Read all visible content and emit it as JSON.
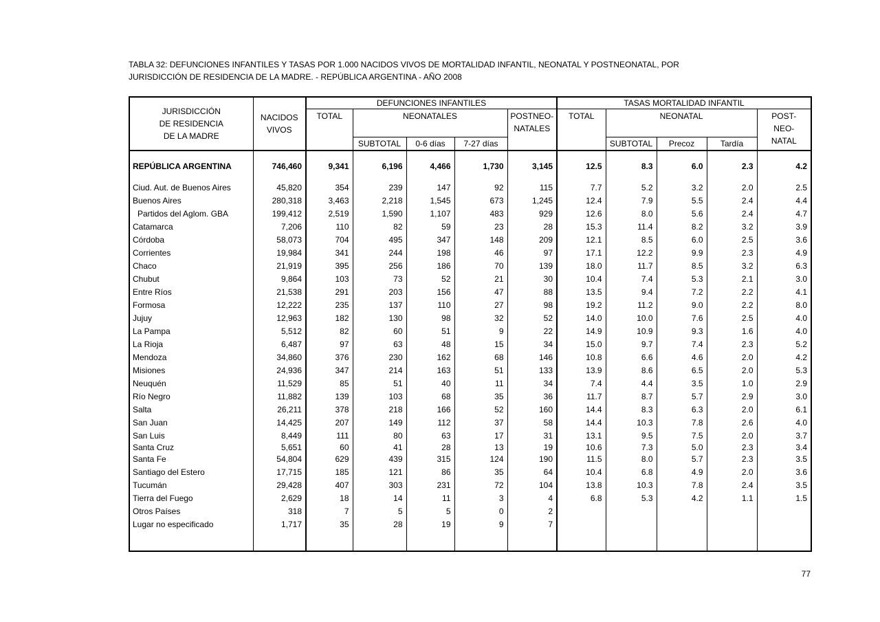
{
  "title": {
    "line1": "TABLA 32: DEFUNCIONES INFANTILES Y TASAS POR 1.000 NACIDOS VIVOS DE MORTALIDAD INFANTIL, NEONATAL Y POSTNEONATAL, POR",
    "line2": "JURISDICCIÓN DE RESIDENCIA DE LA MADRE. - REPÚBLICA ARGENTINA - AÑO 2008"
  },
  "page": {
    "number": "77"
  },
  "table": {
    "header": {
      "jurisdiction_lines": [
        "JURISDICCIÓN",
        "DE RESIDENCIA",
        "DE LA MADRE"
      ],
      "nacidos_lines": [
        "NACIDOS",
        "VIVOS"
      ],
      "defunciones_group": "DEFUNCIONES  INFANTILES",
      "tasas_group": "TASAS MORTALIDAD INFANTIL",
      "defunciones_total": "TOTAL",
      "neonatales": "NEONATALES",
      "postneonatales_lines": [
        "POSTNEO-",
        "NATALES"
      ],
      "defunciones_sub": [
        "SUBTOTAL",
        "0-6 días",
        "7-27 días"
      ],
      "tasas_total": "TOTAL",
      "neonatal": "NEONATAL",
      "postneonatal_lines": [
        "POST-",
        "NEO-",
        "NATAL"
      ],
      "tasas_sub": [
        "SUBTOTAL",
        "Precoz",
        "Tardía"
      ]
    },
    "total_row": {
      "label": "REPÚBLICA ARGENTINA",
      "values": [
        "746,460",
        "9,341",
        "6,196",
        "4,466",
        "1,730",
        "3,145",
        "12.5",
        "8.3",
        "6.0",
        "2.3",
        "4.2"
      ]
    },
    "rows": [
      {
        "label": "Ciud. Aut. de  Buenos Aires",
        "values": [
          "45,820",
          "354",
          "239",
          "147",
          "92",
          "115",
          "7.7",
          "5.2",
          "3.2",
          "2.0",
          "2.5"
        ]
      },
      {
        "label": "Buenos Aires",
        "values": [
          "280,318",
          "3,463",
          "2,218",
          "1,545",
          "673",
          "1,245",
          "12.4",
          "7.9",
          "5.5",
          "2.4",
          "4.4"
        ]
      },
      {
        "label": "Partidos del Aglom. GBA",
        "indent": true,
        "values": [
          "199,412",
          "2,519",
          "1,590",
          "1,107",
          "483",
          "929",
          "12.6",
          "8.0",
          "5.6",
          "2.4",
          "4.7"
        ]
      },
      {
        "label": "Catamarca",
        "values": [
          "7,206",
          "110",
          "82",
          "59",
          "23",
          "28",
          "15.3",
          "11.4",
          "8.2",
          "3.2",
          "3.9"
        ]
      },
      {
        "label": "Córdoba",
        "values": [
          "58,073",
          "704",
          "495",
          "347",
          "148",
          "209",
          "12.1",
          "8.5",
          "6.0",
          "2.5",
          "3.6"
        ]
      },
      {
        "label": "Corrientes",
        "values": [
          "19,984",
          "341",
          "244",
          "198",
          "46",
          "97",
          "17.1",
          "12.2",
          "9.9",
          "2.3",
          "4.9"
        ]
      },
      {
        "label": "Chaco",
        "values": [
          "21,919",
          "395",
          "256",
          "186",
          "70",
          "139",
          "18.0",
          "11.7",
          "8.5",
          "3.2",
          "6.3"
        ]
      },
      {
        "label": "Chubut",
        "values": [
          "9,864",
          "103",
          "73",
          "52",
          "21",
          "30",
          "10.4",
          "7.4",
          "5.3",
          "2.1",
          "3.0"
        ]
      },
      {
        "label": "Entre Ríos",
        "values": [
          "21,538",
          "291",
          "203",
          "156",
          "47",
          "88",
          "13.5",
          "9.4",
          "7.2",
          "2.2",
          "4.1"
        ]
      },
      {
        "label": "Formosa",
        "values": [
          "12,222",
          "235",
          "137",
          "110",
          "27",
          "98",
          "19.2",
          "11.2",
          "9.0",
          "2.2",
          "8.0"
        ]
      },
      {
        "label": "Jujuy",
        "values": [
          "12,963",
          "182",
          "130",
          "98",
          "32",
          "52",
          "14.0",
          "10.0",
          "7.6",
          "2.5",
          "4.0"
        ]
      },
      {
        "label": "La Pampa",
        "values": [
          "5,512",
          "82",
          "60",
          "51",
          "9",
          "22",
          "14.9",
          "10.9",
          "9.3",
          "1.6",
          "4.0"
        ]
      },
      {
        "label": "La Rioja",
        "values": [
          "6,487",
          "97",
          "63",
          "48",
          "15",
          "34",
          "15.0",
          "9.7",
          "7.4",
          "2.3",
          "5.2"
        ]
      },
      {
        "label": "Mendoza",
        "values": [
          "34,860",
          "376",
          "230",
          "162",
          "68",
          "146",
          "10.8",
          "6.6",
          "4.6",
          "2.0",
          "4.2"
        ]
      },
      {
        "label": "Misiones",
        "values": [
          "24,936",
          "347",
          "214",
          "163",
          "51",
          "133",
          "13.9",
          "8.6",
          "6.5",
          "2.0",
          "5.3"
        ]
      },
      {
        "label": "Neuquén",
        "values": [
          "11,529",
          "85",
          "51",
          "40",
          "11",
          "34",
          "7.4",
          "4.4",
          "3.5",
          "1.0",
          "2.9"
        ]
      },
      {
        "label": "Río Negro",
        "values": [
          "11,882",
          "139",
          "103",
          "68",
          "35",
          "36",
          "11.7",
          "8.7",
          "5.7",
          "2.9",
          "3.0"
        ]
      },
      {
        "label": "Salta",
        "values": [
          "26,211",
          "378",
          "218",
          "166",
          "52",
          "160",
          "14.4",
          "8.3",
          "6.3",
          "2.0",
          "6.1"
        ]
      },
      {
        "label": "San Juan",
        "values": [
          "14,425",
          "207",
          "149",
          "112",
          "37",
          "58",
          "14.4",
          "10.3",
          "7.8",
          "2.6",
          "4.0"
        ]
      },
      {
        "label": "San Luis",
        "values": [
          "8,449",
          "111",
          "80",
          "63",
          "17",
          "31",
          "13.1",
          "9.5",
          "7.5",
          "2.0",
          "3.7"
        ]
      },
      {
        "label": "Santa Cruz",
        "compact": true,
        "values": [
          "5,651",
          "60",
          "41",
          "28",
          "13",
          "19",
          "10.6",
          "7.3",
          "5.0",
          "2.3",
          "3.4"
        ]
      },
      {
        "label": "Santa Fe",
        "values": [
          "54,804",
          "629",
          "439",
          "315",
          "124",
          "190",
          "11.5",
          "8.0",
          "5.7",
          "2.3",
          "3.5"
        ]
      },
      {
        "label": "Santiago del Estero",
        "values": [
          "17,715",
          "185",
          "121",
          "86",
          "35",
          "64",
          "10.4",
          "6.8",
          "4.9",
          "2.0",
          "3.6"
        ]
      },
      {
        "label": "Tucumán",
        "values": [
          "29,428",
          "407",
          "303",
          "231",
          "72",
          "104",
          "13.8",
          "10.3",
          "7.8",
          "2.4",
          "3.5"
        ]
      },
      {
        "label": "Tierra del Fuego",
        "values": [
          "2,629",
          "18",
          "14",
          "11",
          "3",
          "4",
          "6.8",
          "5.3",
          "4.2",
          "1.1",
          "1.5"
        ]
      },
      {
        "label": "Otros Países",
        "values": [
          "318",
          "7",
          "5",
          "5",
          "0",
          "2",
          "",
          "",
          "",
          "",
          ""
        ]
      },
      {
        "label": "Lugar no especificado",
        "values": [
          "1,717",
          "35",
          "28",
          "19",
          "9",
          "7",
          "",
          "",
          "",
          "",
          ""
        ]
      }
    ]
  }
}
